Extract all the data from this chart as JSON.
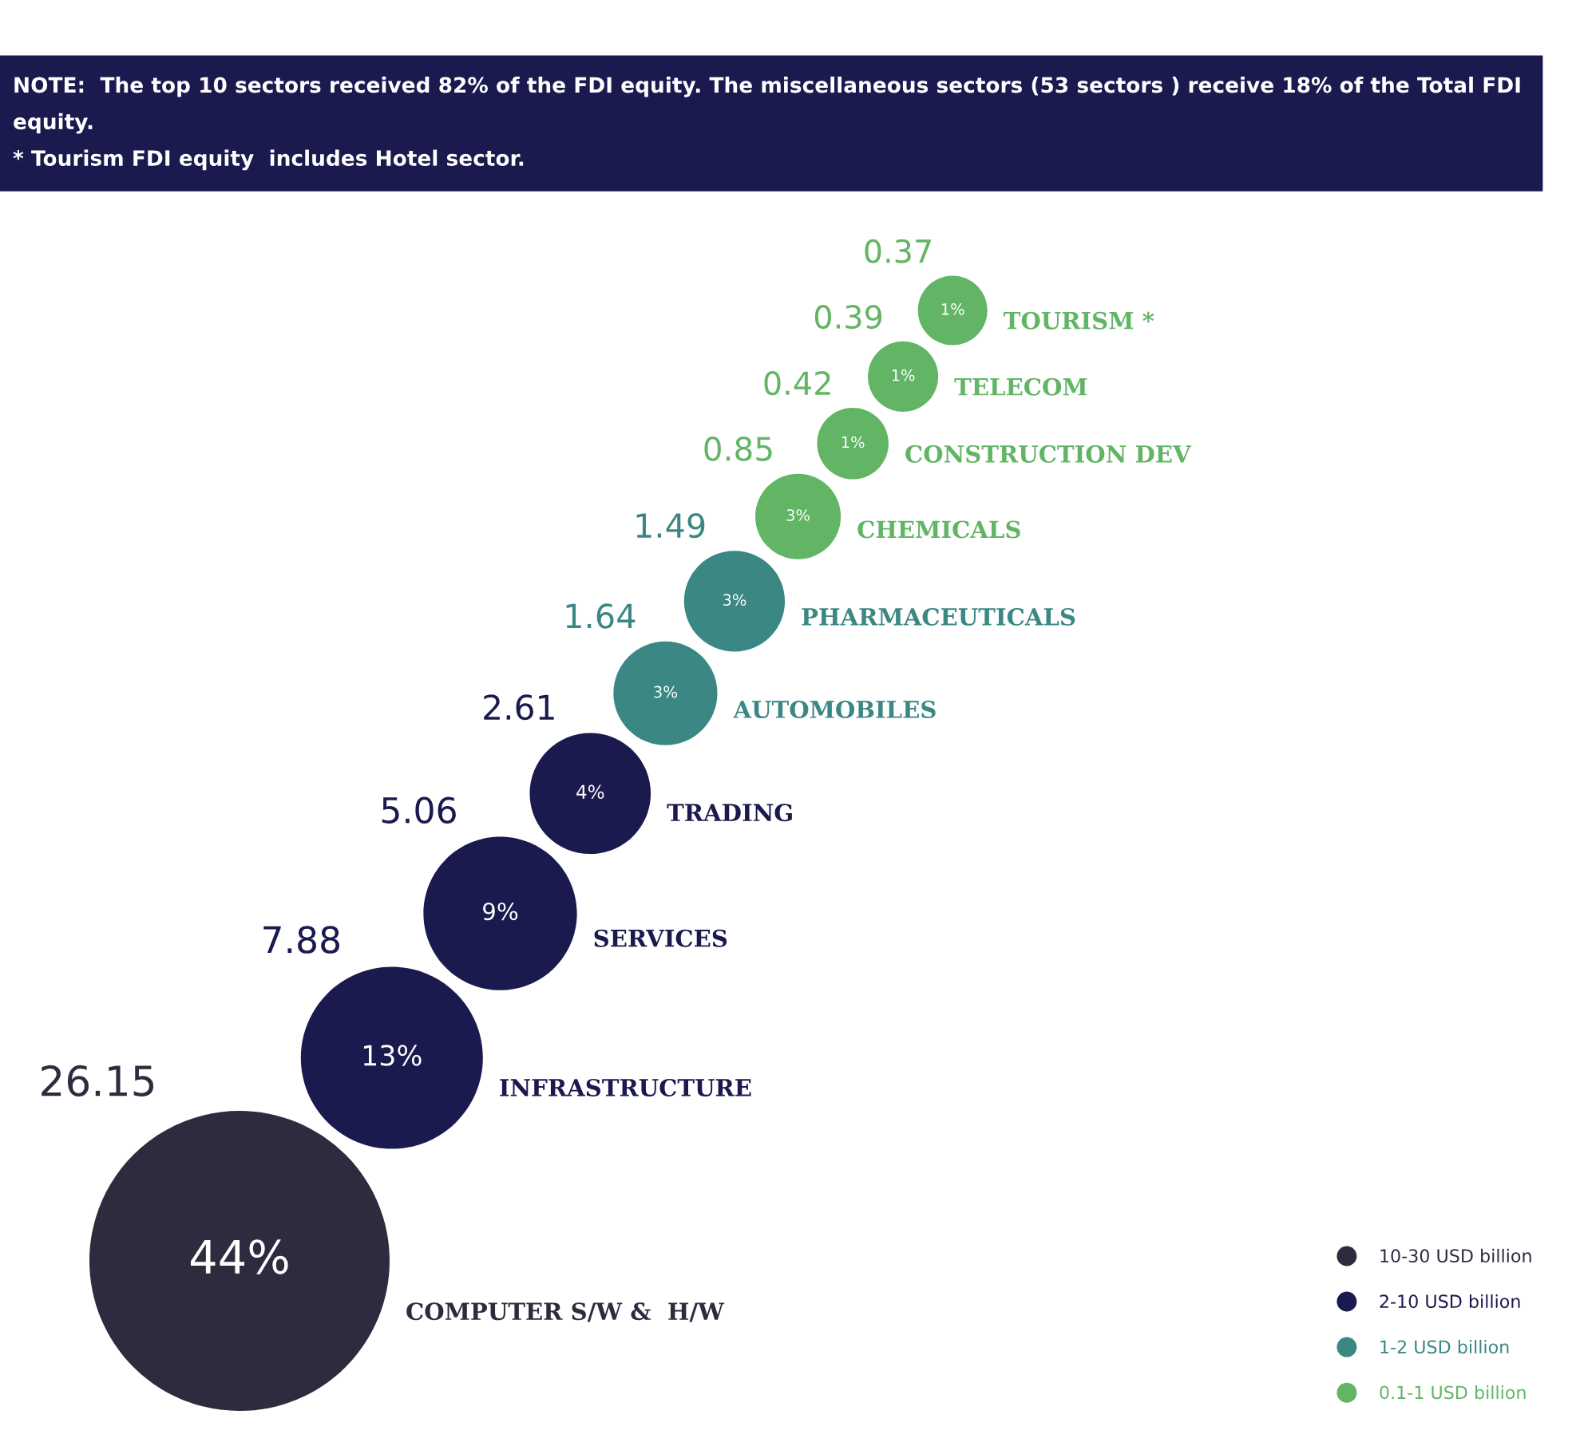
{
  "chart_data": {
    "type": "other",
    "categories": [
      "COMPUTER S/W &  H/W",
      "INFRASTRUCTURE",
      "SERVICES",
      "TRADING",
      "AUTOMOBILES",
      "PHARMACEUTICALS",
      "CHEMICALS",
      "CONSTRUCTION DEV",
      "TELECOM",
      "TOURISM *"
    ],
    "series": [
      {
        "name": "10-30 USD billion",
        "color": "#2c2c3e",
        "values": [
          26.15,
          null,
          null,
          null,
          null,
          null,
          null,
          null,
          null,
          null
        ]
      },
      {
        "name": "2-10 USD billion",
        "color": "#1b1a4f",
        "values": [
          null,
          7.88,
          5.06,
          2.61,
          null,
          null,
          null,
          null,
          null,
          null
        ]
      },
      {
        "name": "1-2 USD billion",
        "color": "#3a8784",
        "values": [
          null,
          null,
          null,
          null,
          1.64,
          1.49,
          null,
          null,
          null,
          null
        ]
      },
      {
        "name": "0.1-1 USD billion",
        "color": "#62b565",
        "values": [
          null,
          null,
          null,
          null,
          null,
          null,
          0.85,
          0.42,
          0.39,
          0.37
        ]
      }
    ],
    "data_labels": true,
    "value_labels": [
      "44%",
      "13%",
      "9%",
      "4%",
      "3%",
      "3%",
      "3%",
      "1%",
      "1%",
      "1%"
    ],
    "legend": "bottom right",
    "annotations": [
      "NOTE:  The top 10 sectors received 82% of the FDI equity. The miscellaneous sectors (53 sectors ) receive 18% of the Total FDI equity.\n* Tourism FDI equity  includes Hotel sector."
    ]
  }
}
